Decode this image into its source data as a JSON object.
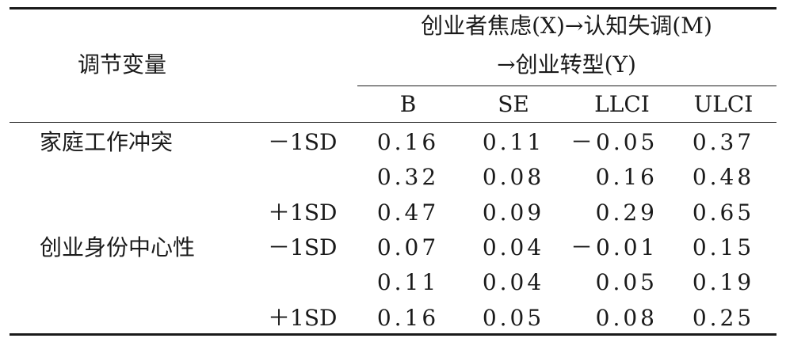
{
  "table": {
    "header": {
      "row_label": "调节变量",
      "path_line1": "创业者焦虑(X)→认知失调(M)",
      "path_line2": "→创业转型(Y)",
      "columns": [
        "B",
        "SE",
        "LLCI",
        "ULCI"
      ]
    },
    "rows": [
      {
        "moderator": "家庭工作冲突",
        "level": "－1SD",
        "B": "0.16",
        "SE": "0.11",
        "LLCI": "－0.05",
        "ULCI": "0.37"
      },
      {
        "moderator": "",
        "level": "",
        "B": "0.32",
        "SE": "0.08",
        "LLCI": "0.16",
        "ULCI": "0.48"
      },
      {
        "moderator": "",
        "level": "＋1SD",
        "B": "0.47",
        "SE": "0.09",
        "LLCI": "0.29",
        "ULCI": "0.65"
      },
      {
        "moderator": "创业身份中心性",
        "level": "－1SD",
        "B": "0.07",
        "SE": "0.04",
        "LLCI": "－0.01",
        "ULCI": "0.15"
      },
      {
        "moderator": "",
        "level": "",
        "B": "0.11",
        "SE": "0.04",
        "LLCI": "0.05",
        "ULCI": "0.19"
      },
      {
        "moderator": "",
        "level": "＋1SD",
        "B": "0.16",
        "SE": "0.05",
        "LLCI": "0.08",
        "ULCI": "0.25"
      }
    ]
  }
}
